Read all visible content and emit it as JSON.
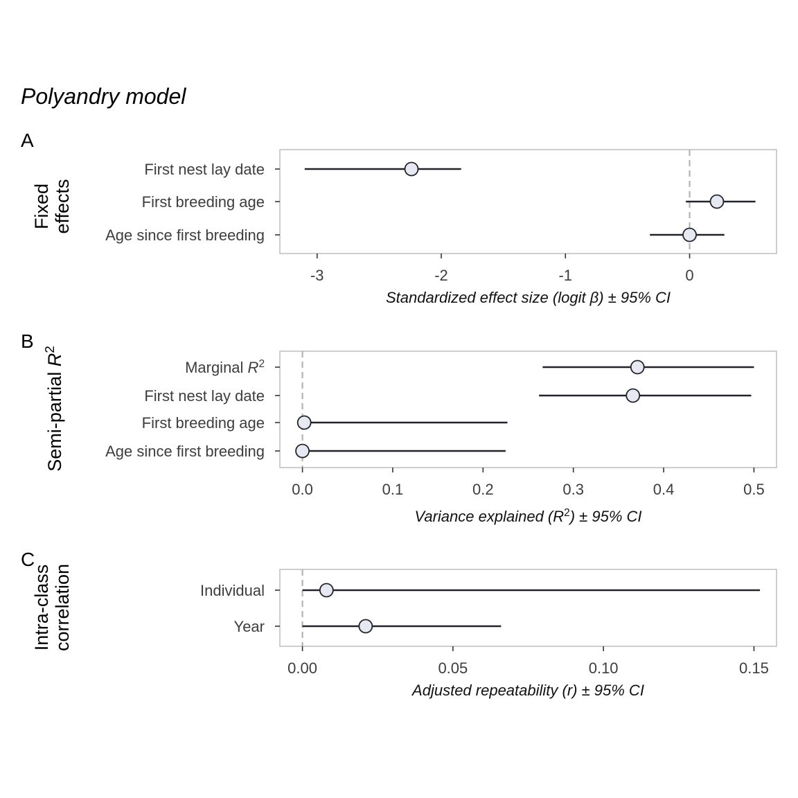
{
  "title": "Polyandry model",
  "chart_data": [
    {
      "type": "forest",
      "panel": "A",
      "ylabel_lines": [
        "Fixed",
        "effects"
      ],
      "xlabel": "Standardized effect size (logit β) ± 95% CI",
      "xlim": [
        -3.3,
        0.7
      ],
      "ref_line": 0,
      "ticks": [
        -3,
        -2,
        -1,
        0
      ],
      "tick_labels": [
        "-3",
        "-2",
        "-1",
        "0"
      ],
      "rows": [
        {
          "label": "First nest lay date",
          "estimate": -2.24,
          "lower": -3.1,
          "upper": -1.84
        },
        {
          "label": "First breeding age",
          "estimate": 0.22,
          "lower": -0.03,
          "upper": 0.53
        },
        {
          "label": "Age since first breeding",
          "estimate": 0.0,
          "lower": -0.32,
          "upper": 0.28
        }
      ]
    },
    {
      "type": "forest",
      "panel": "B",
      "ylabel_lines": [
        "Semi-partial R²"
      ],
      "xlabel": "Variance explained (R²) ± 95% CI",
      "xlim": [
        -0.025,
        0.525
      ],
      "ref_line": 0,
      "ticks": [
        0,
        0.1,
        0.2,
        0.3,
        0.4,
        0.5
      ],
      "tick_labels": [
        "0.0",
        "0.1",
        "0.2",
        "0.3",
        "0.4",
        "0.5"
      ],
      "rows": [
        {
          "label": "Marginal R²",
          "estimate": 0.371,
          "lower": 0.266,
          "upper": 0.5
        },
        {
          "label": "First nest lay date",
          "estimate": 0.366,
          "lower": 0.262,
          "upper": 0.497
        },
        {
          "label": "First breeding age",
          "estimate": 0.002,
          "lower": 0.0,
          "upper": 0.227
        },
        {
          "label": "Age since first breeding",
          "estimate": 0.0,
          "lower": 0.0,
          "upper": 0.225
        }
      ]
    },
    {
      "type": "forest",
      "panel": "C",
      "ylabel_lines": [
        "Intra-class",
        "correlation"
      ],
      "xlabel": "Adjusted repeatability (r) ± 95% CI",
      "xlim": [
        -0.0075,
        0.1575
      ],
      "ref_line": 0,
      "ticks": [
        0,
        0.05,
        0.1,
        0.15
      ],
      "tick_labels": [
        "0.00",
        "0.05",
        "0.10",
        "0.15"
      ],
      "rows": [
        {
          "label": "Individual",
          "estimate": 0.008,
          "lower": 0.0,
          "upper": 0.152
        },
        {
          "label": "Year",
          "estimate": 0.021,
          "lower": 0.0,
          "upper": 0.066
        }
      ]
    }
  ],
  "colors": {
    "point_fill": "#e6e9f2",
    "line": "#22222a",
    "ref_line": "#b3b3b3",
    "frame": "#bdbdbd"
  }
}
